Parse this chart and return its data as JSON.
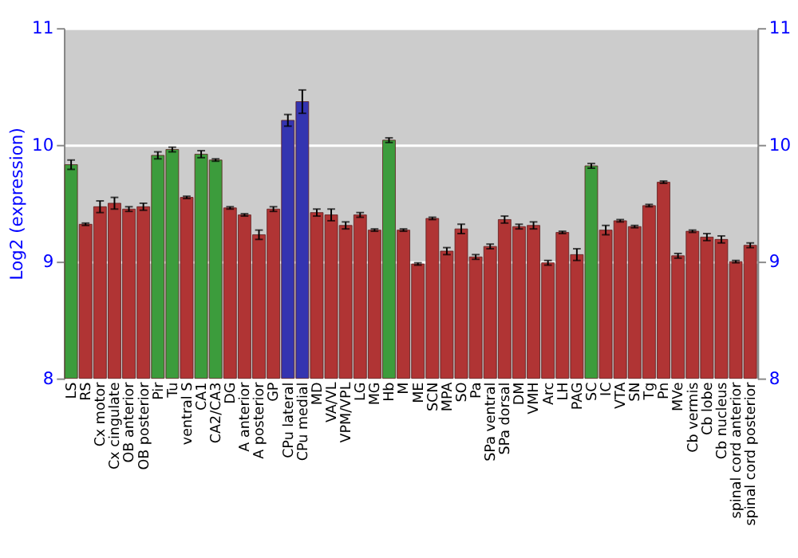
{
  "chart_data": {
    "type": "bar",
    "ylabel": "Log2 (expression)",
    "categories": [
      "LS",
      "RS",
      "Cx motor",
      "Cx cingulate",
      "OB anterior",
      "OB posterior",
      "Pir",
      "Tu",
      "ventral S",
      "CA1",
      "CA2/CA3",
      "DG",
      "A anterior",
      "A posterior",
      "GP",
      "CPu lateral",
      "CPu medial",
      "MD",
      "VA/VL",
      "VPM/VPL",
      "LG",
      "MG",
      "Hb",
      "M",
      "ME",
      "SCN",
      "MPA",
      "SO",
      "Pa",
      "SPa ventral",
      "SPa dorsal",
      "DM",
      "VMH",
      "Arc",
      "LH",
      "PAG",
      "SC",
      "IC",
      "VTA",
      "SN",
      "Tg",
      "Pn",
      "MVe",
      "Cb vermis",
      "Cb lobe",
      "Cb nucleus",
      "spinal cord anterior",
      "spinal cord posterior"
    ],
    "values": [
      9.83,
      9.32,
      9.47,
      9.5,
      9.45,
      9.47,
      9.91,
      9.96,
      9.55,
      9.92,
      9.87,
      9.46,
      9.4,
      9.23,
      9.45,
      10.21,
      10.37,
      9.42,
      9.4,
      9.31,
      9.4,
      9.27,
      10.04,
      9.27,
      8.98,
      9.37,
      9.09,
      9.28,
      9.04,
      9.13,
      9.36,
      9.3,
      9.31,
      8.99,
      9.25,
      9.06,
      9.82,
      9.27,
      9.35,
      9.3,
      9.48,
      9.68,
      9.05,
      9.26,
      9.21,
      9.19,
      9.0,
      9.14
    ],
    "errors": [
      0.04,
      0.01,
      0.05,
      0.05,
      0.02,
      0.03,
      0.03,
      0.02,
      0.01,
      0.03,
      0.01,
      0.01,
      0.01,
      0.04,
      0.02,
      0.05,
      0.1,
      0.03,
      0.05,
      0.03,
      0.02,
      0.01,
      0.02,
      0.01,
      0.01,
      0.01,
      0.03,
      0.04,
      0.02,
      0.02,
      0.03,
      0.02,
      0.03,
      0.02,
      0.01,
      0.05,
      0.02,
      0.04,
      0.01,
      0.01,
      0.01,
      0.01,
      0.02,
      0.01,
      0.03,
      0.03,
      0.01,
      0.02
    ],
    "colors": [
      "#3c9c3c",
      "#b03434",
      "#b03434",
      "#b03434",
      "#b03434",
      "#b03434",
      "#3c9c3c",
      "#3c9c3c",
      "#b03434",
      "#3c9c3c",
      "#3c9c3c",
      "#b03434",
      "#b03434",
      "#b03434",
      "#b03434",
      "#3434b0",
      "#3434b0",
      "#b03434",
      "#b03434",
      "#b03434",
      "#b03434",
      "#b03434",
      "#3c9c3c",
      "#b03434",
      "#b03434",
      "#b03434",
      "#b03434",
      "#b03434",
      "#b03434",
      "#b03434",
      "#b03434",
      "#b03434",
      "#b03434",
      "#b03434",
      "#b03434",
      "#b03434",
      "#3c9c3c",
      "#b03434",
      "#b03434",
      "#b03434",
      "#b03434",
      "#b03434",
      "#b03434",
      "#b03434",
      "#b03434",
      "#b03434",
      "#b03434",
      "#b03434"
    ],
    "ylim": [
      8,
      11
    ],
    "yticks": [
      8,
      9,
      10,
      11
    ],
    "y2lim": [
      8,
      11
    ],
    "y2ticks": [
      8,
      9,
      10,
      11
    ],
    "grid": "y"
  }
}
